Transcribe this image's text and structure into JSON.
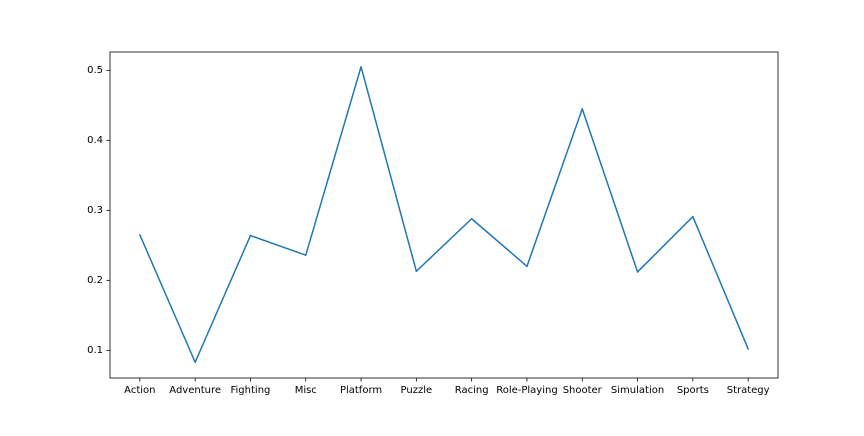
{
  "chart_data": {
    "type": "line",
    "title": "",
    "xlabel": "",
    "ylabel": "",
    "categories": [
      "Action",
      "Adventure",
      "Fighting",
      "Misc",
      "Platform",
      "Puzzle",
      "Racing",
      "Role-Playing",
      "Shooter",
      "Simulation",
      "Sports",
      "Strategy"
    ],
    "series": [
      {
        "values": [
          0.265,
          0.083,
          0.264,
          0.236,
          0.505,
          0.213,
          0.288,
          0.22,
          0.445,
          0.212,
          0.291,
          0.102
        ]
      }
    ],
    "ylim": [
      0.0605,
      0.5262
    ],
    "yticks": [
      0.1,
      0.2,
      0.3,
      0.4,
      0.5
    ],
    "ytick_labels": [
      "0.1",
      "0.2",
      "0.3",
      "0.4",
      "0.5"
    ],
    "grid": false,
    "line_color": "#1f77b4"
  }
}
